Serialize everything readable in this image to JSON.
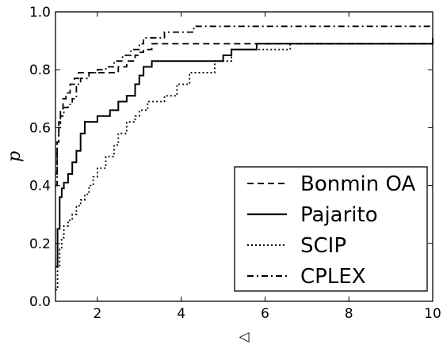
{
  "chart_data": {
    "type": "line",
    "xlabel": "◁",
    "ylabel": "p",
    "xlim": [
      1,
      10
    ],
    "ylim": [
      0,
      1
    ],
    "xticks": [
      2,
      4,
      6,
      8,
      10
    ],
    "yticks": [
      0.0,
      0.2,
      0.4,
      0.6,
      0.8,
      1.0
    ],
    "xtick_labels": [
      "2",
      "4",
      "6",
      "8",
      "10"
    ],
    "ytick_labels": [
      "0.0",
      "0.2",
      "0.4",
      "0.6",
      "0.8",
      "1.0"
    ],
    "grid": false,
    "legend_position": "lower-right",
    "step": true,
    "series": [
      {
        "name": "Bonmin OA",
        "style": "dashed",
        "color": "#000000",
        "x": [
          1.0,
          1.04,
          1.08,
          1.12,
          1.18,
          1.25,
          1.35,
          1.45,
          1.55,
          1.7,
          2.0,
          2.2,
          2.5,
          2.7,
          2.9,
          3.0,
          3.1,
          3.3,
          5.2,
          6.0,
          10.0
        ],
        "y": [
          0.44,
          0.55,
          0.62,
          0.66,
          0.7,
          0.72,
          0.75,
          0.77,
          0.79,
          0.79,
          0.79,
          0.79,
          0.81,
          0.83,
          0.85,
          0.86,
          0.87,
          0.89,
          0.89,
          0.89,
          0.89
        ]
      },
      {
        "name": "Pajarito",
        "style": "solid",
        "color": "#000000",
        "x": [
          1.0,
          1.05,
          1.1,
          1.15,
          1.2,
          1.3,
          1.4,
          1.5,
          1.6,
          1.7,
          1.8,
          2.0,
          2.3,
          2.5,
          2.7,
          2.9,
          3.0,
          3.1,
          3.3,
          4.8,
          5.0,
          5.2,
          5.8,
          10.0
        ],
        "y": [
          0.12,
          0.25,
          0.36,
          0.39,
          0.41,
          0.44,
          0.48,
          0.52,
          0.58,
          0.62,
          0.62,
          0.64,
          0.66,
          0.69,
          0.71,
          0.75,
          0.78,
          0.81,
          0.83,
          0.83,
          0.85,
          0.87,
          0.89,
          0.91
        ]
      },
      {
        "name": "SCIP",
        "style": "dotted",
        "color": "#000000",
        "x": [
          1.0,
          1.05,
          1.1,
          1.15,
          1.2,
          1.3,
          1.4,
          1.5,
          1.6,
          1.7,
          1.8,
          1.9,
          2.0,
          2.2,
          2.4,
          2.5,
          2.7,
          2.9,
          3.0,
          3.2,
          3.6,
          3.9,
          4.2,
          4.8,
          5.2,
          6.4,
          6.6,
          10.0
        ],
        "y": [
          0.04,
          0.12,
          0.18,
          0.22,
          0.26,
          0.28,
          0.3,
          0.33,
          0.35,
          0.37,
          0.4,
          0.43,
          0.46,
          0.5,
          0.54,
          0.58,
          0.62,
          0.64,
          0.66,
          0.69,
          0.71,
          0.75,
          0.79,
          0.83,
          0.87,
          0.87,
          0.89,
          0.91
        ]
      },
      {
        "name": "CPLEX",
        "style": "dashdot",
        "color": "#000000",
        "x": [
          1.0,
          1.04,
          1.08,
          1.12,
          1.2,
          1.3,
          1.4,
          1.5,
          1.6,
          1.8,
          2.0,
          2.2,
          2.4,
          2.6,
          2.8,
          3.0,
          3.1,
          3.4,
          3.6,
          4.3,
          10.0
        ],
        "y": [
          0.4,
          0.55,
          0.6,
          0.64,
          0.67,
          0.68,
          0.7,
          0.75,
          0.77,
          0.79,
          0.8,
          0.81,
          0.83,
          0.85,
          0.87,
          0.89,
          0.91,
          0.91,
          0.93,
          0.95,
          0.95
        ]
      }
    ]
  }
}
